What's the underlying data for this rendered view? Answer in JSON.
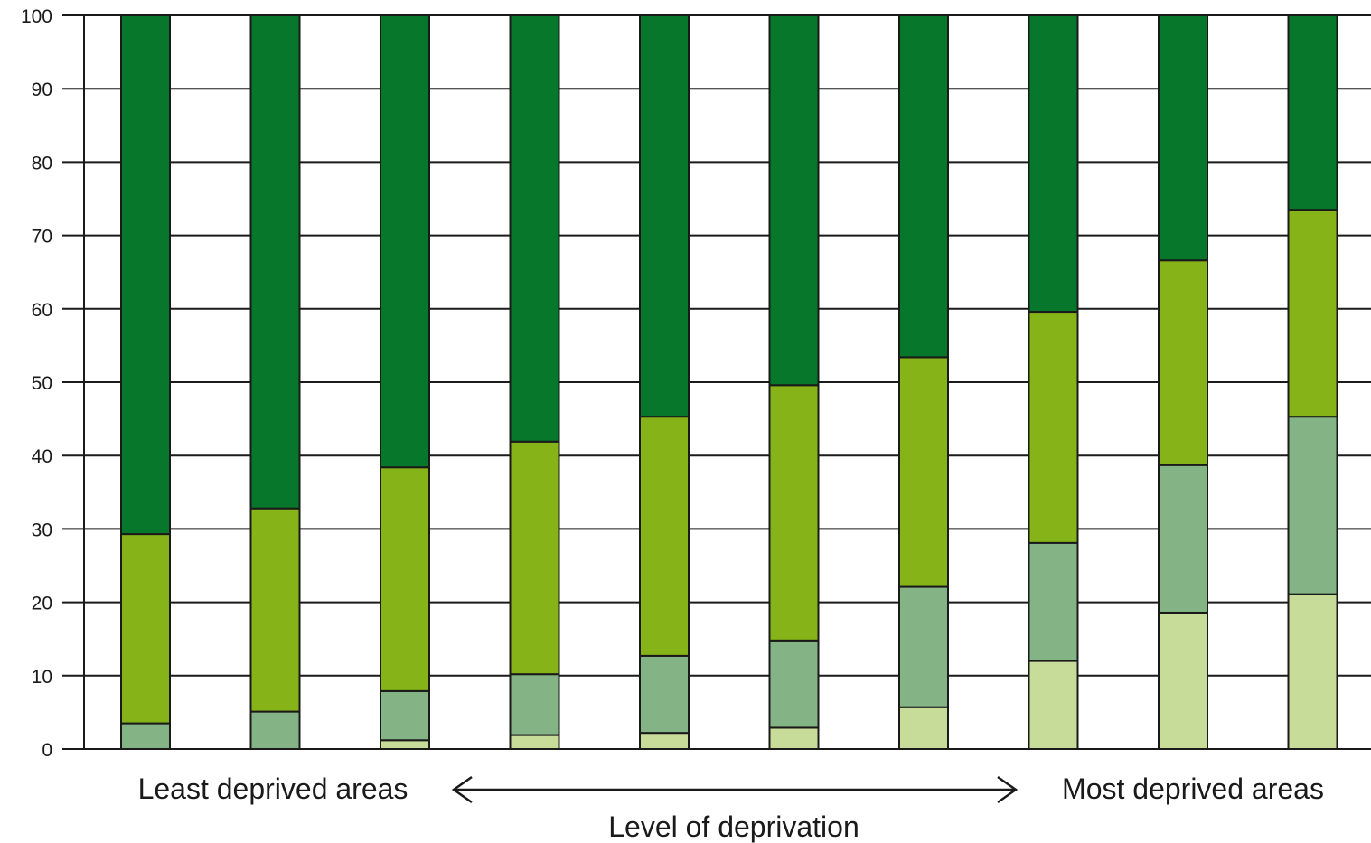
{
  "chart_data": {
    "type": "bar",
    "stacked": true,
    "categories": [
      "",
      "",
      "",
      "",
      "",
      "",
      "",
      "",
      "",
      ""
    ],
    "series": [
      {
        "color": "#c8dc9a",
        "values": [
          0,
          0,
          1.2,
          1.9,
          2.2,
          2.9,
          5.7,
          12.0,
          18.6,
          21.1
        ]
      },
      {
        "color": "#84b485",
        "values": [
          3.5,
          5.1,
          6.7,
          8.3,
          10.5,
          11.9,
          16.4,
          16.1,
          20.1,
          24.2
        ]
      },
      {
        "color": "#86b418",
        "values": [
          25.8,
          27.7,
          30.5,
          31.7,
          32.6,
          34.8,
          31.3,
          31.5,
          27.9,
          28.2
        ]
      },
      {
        "color": "#06772b",
        "values": [
          70.7,
          67.2,
          61.6,
          58.1,
          54.7,
          50.4,
          46.6,
          40.4,
          33.4,
          26.5
        ]
      }
    ],
    "ylim": [
      0,
      100
    ],
    "yticks": [
      "0",
      "10",
      "20",
      "30",
      "40",
      "50",
      "60",
      "70",
      "80",
      "90",
      "100"
    ],
    "grid": true,
    "left_annotation": "Least deprived areas",
    "right_annotation": "Most deprived areas",
    "xlabel": "Level of deprivation",
    "ylabel": ""
  }
}
